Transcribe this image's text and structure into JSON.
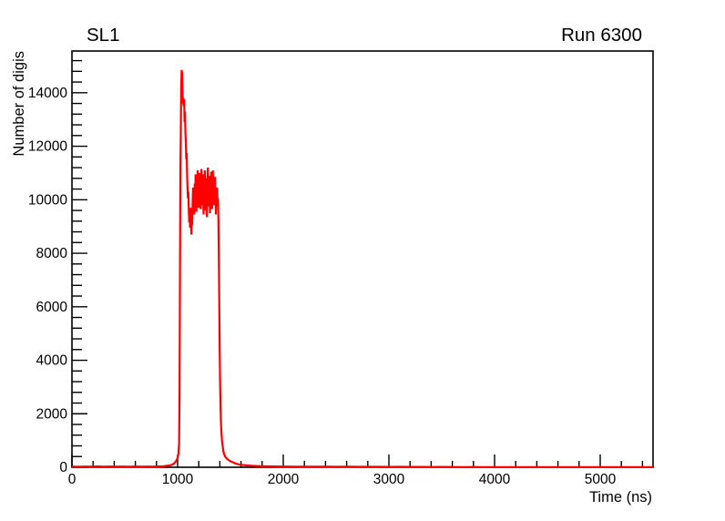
{
  "page": {
    "background": "#ffffff"
  },
  "chart_data": {
    "type": "line",
    "style": "histogram-step-curve",
    "title": "SL1",
    "annotation_right": "Run 6300",
    "xlabel": "Time (ns)",
    "ylabel": "Number of digis",
    "xlim": [
      0,
      5500
    ],
    "ylim": [
      0,
      15560
    ],
    "x_major_ticks": [
      0,
      1000,
      2000,
      3000,
      4000,
      5000
    ],
    "x_minor_step": 200,
    "y_major_ticks": [
      0,
      2000,
      4000,
      6000,
      8000,
      10000,
      12000,
      14000
    ],
    "y_minor_step": 400,
    "grid": false,
    "legend": false,
    "line_color": "#ff0000",
    "frame_color": "#000000",
    "peak_value": 14850,
    "series": [
      {
        "name": "digis",
        "x": [
          0,
          60,
          120,
          180,
          240,
          300,
          360,
          420,
          480,
          540,
          600,
          660,
          720,
          780,
          820,
          860,
          900,
          930,
          950,
          970,
          985,
          1000,
          1008,
          1014,
          1018,
          1022,
          1026,
          1030,
          1034,
          1038,
          1042,
          1046,
          1050,
          1054,
          1058,
          1062,
          1066,
          1070,
          1074,
          1078,
          1082,
          1086,
          1090,
          1094,
          1098,
          1102,
          1106,
          1110,
          1114,
          1118,
          1122,
          1126,
          1130,
          1134,
          1138,
          1142,
          1146,
          1150,
          1154,
          1158,
          1162,
          1166,
          1170,
          1174,
          1178,
          1182,
          1186,
          1190,
          1194,
          1198,
          1202,
          1206,
          1210,
          1214,
          1218,
          1222,
          1226,
          1230,
          1234,
          1238,
          1242,
          1246,
          1250,
          1254,
          1258,
          1262,
          1266,
          1270,
          1274,
          1278,
          1282,
          1286,
          1290,
          1294,
          1298,
          1302,
          1306,
          1310,
          1314,
          1318,
          1322,
          1326,
          1330,
          1334,
          1338,
          1342,
          1346,
          1350,
          1354,
          1358,
          1362,
          1366,
          1370,
          1374,
          1378,
          1382,
          1386,
          1390,
          1394,
          1398,
          1402,
          1406,
          1410,
          1415,
          1420,
          1426,
          1432,
          1440,
          1450,
          1460,
          1472,
          1486,
          1500,
          1520,
          1540,
          1560,
          1590,
          1620,
          1660,
          1700,
          1750,
          1800,
          1900,
          2000,
          2100,
          2200,
          2300,
          2400,
          2500,
          2600,
          2700,
          2800,
          2900,
          3000,
          3100,
          3200,
          3300,
          3400,
          3500,
          3600,
          3700,
          3800,
          3900,
          4000,
          4100,
          4200,
          4300,
          4400,
          4500,
          4600,
          4700,
          4800,
          4900,
          5000,
          5100,
          5200,
          5300,
          5400,
          5500
        ],
        "y": [
          25,
          18,
          28,
          20,
          30,
          22,
          28,
          20,
          26,
          22,
          28,
          20,
          26,
          24,
          30,
          35,
          55,
          75,
          100,
          150,
          230,
          340,
          520,
          900,
          2600,
          6500,
          11000,
          12500,
          14200,
          14850,
          14750,
          14100,
          13600,
          13800,
          13500,
          13750,
          12900,
          13300,
          12500,
          12100,
          11500,
          11750,
          10900,
          10400,
          10050,
          10300,
          9600,
          9150,
          9450,
          8950,
          9700,
          9250,
          8700,
          9350,
          9050,
          9800,
          10450,
          9700,
          10150,
          9450,
          10600,
          10000,
          10950,
          10250,
          9550,
          10800,
          10100,
          11100,
          10350,
          9700,
          10550,
          9900,
          11000,
          10400,
          9650,
          10250,
          11150,
          10500,
          9800,
          10950,
          10100,
          9450,
          10700,
          10050,
          11100,
          10350,
          9600,
          10800,
          10150,
          9350,
          10550,
          11200,
          10450,
          9750,
          10900,
          10200,
          9500,
          10750,
          9950,
          11050,
          10300,
          9650,
          10550,
          11100,
          10400,
          9800,
          10650,
          9950,
          10850,
          10150,
          9450,
          10250,
          9750,
          10450,
          9850,
          10050,
          9300,
          8000,
          6200,
          4500,
          3200,
          2300,
          1700,
          1300,
          1000,
          800,
          620,
          490,
          400,
          350,
          300,
          260,
          225,
          190,
          155,
          125,
          100,
          82,
          68,
          55,
          45,
          38,
          30,
          26,
          24,
          22,
          20,
          22,
          18,
          20,
          18,
          16,
          18,
          14,
          16,
          12,
          14,
          10,
          12,
          8,
          6,
          8,
          5,
          6,
          5,
          6,
          4,
          5,
          4,
          5,
          4,
          3,
          4,
          3,
          4,
          3,
          4,
          3,
          3
        ]
      }
    ]
  }
}
